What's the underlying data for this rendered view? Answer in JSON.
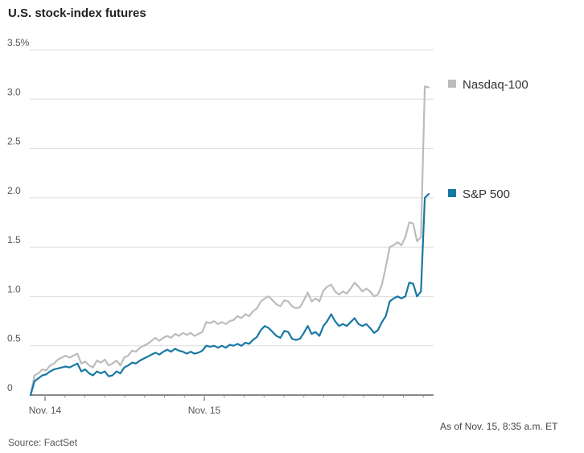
{
  "chart_data": {
    "type": "line",
    "title": "U.S. stock-index futures",
    "source": "Source: FactSet",
    "note": "As of Nov. 15, 8:35 a.m. ET",
    "y_ticks": [
      {
        "value": 0,
        "label": "0"
      },
      {
        "value": 0.5,
        "label": "0.5"
      },
      {
        "value": 1.0,
        "label": "1.0"
      },
      {
        "value": 1.5,
        "label": "1.5"
      },
      {
        "value": 2.0,
        "label": "2.0"
      },
      {
        "value": 2.5,
        "label": "2.5"
      },
      {
        "value": 3.0,
        "label": "3.0"
      },
      {
        "value": 3.5,
        "label": "3.5%"
      }
    ],
    "ylim": [
      0,
      3.5
    ],
    "xlim": [
      0,
      100
    ],
    "x_ticks": [
      {
        "value": 4,
        "label": "Nov. 14"
      },
      {
        "value": 44,
        "label": "Nov. 15"
      }
    ],
    "grid": true,
    "legend_position": "right",
    "series": [
      {
        "name": "Nasdaq-100",
        "color": "#bcbcbc",
        "points": [
          [
            0,
            0
          ],
          [
            1,
            0.2
          ],
          [
            2,
            0.22
          ],
          [
            3,
            0.26
          ],
          [
            4,
            0.25
          ],
          [
            5,
            0.3
          ],
          [
            6,
            0.32
          ],
          [
            7,
            0.36
          ],
          [
            8,
            0.38
          ],
          [
            9,
            0.4
          ],
          [
            10,
            0.38
          ],
          [
            11,
            0.4
          ],
          [
            12,
            0.42
          ],
          [
            13,
            0.32
          ],
          [
            14,
            0.34
          ],
          [
            15,
            0.3
          ],
          [
            16,
            0.28
          ],
          [
            17,
            0.35
          ],
          [
            18,
            0.33
          ],
          [
            19,
            0.36
          ],
          [
            20,
            0.3
          ],
          [
            21,
            0.32
          ],
          [
            22,
            0.35
          ],
          [
            23,
            0.3
          ],
          [
            24,
            0.38
          ],
          [
            25,
            0.4
          ],
          [
            26,
            0.45
          ],
          [
            27,
            0.44
          ],
          [
            28,
            0.48
          ],
          [
            29,
            0.5
          ],
          [
            30,
            0.52
          ],
          [
            31,
            0.55
          ],
          [
            32,
            0.58
          ],
          [
            33,
            0.55
          ],
          [
            34,
            0.58
          ],
          [
            35,
            0.6
          ],
          [
            36,
            0.58
          ],
          [
            37,
            0.62
          ],
          [
            38,
            0.6
          ],
          [
            39,
            0.63
          ],
          [
            40,
            0.61
          ],
          [
            41,
            0.63
          ],
          [
            42,
            0.6
          ],
          [
            43,
            0.62
          ],
          [
            44,
            0.64
          ],
          [
            45,
            0.74
          ],
          [
            46,
            0.73
          ],
          [
            47,
            0.75
          ],
          [
            48,
            0.72
          ],
          [
            49,
            0.74
          ],
          [
            50,
            0.72
          ],
          [
            51,
            0.75
          ],
          [
            52,
            0.76
          ],
          [
            53,
            0.8
          ],
          [
            54,
            0.78
          ],
          [
            55,
            0.82
          ],
          [
            56,
            0.8
          ],
          [
            57,
            0.85
          ],
          [
            58,
            0.88
          ],
          [
            59,
            0.95
          ],
          [
            60,
            0.98
          ],
          [
            61,
            1.0
          ],
          [
            62,
            0.96
          ],
          [
            63,
            0.92
          ],
          [
            64,
            0.9
          ],
          [
            65,
            0.96
          ],
          [
            66,
            0.95
          ],
          [
            67,
            0.9
          ],
          [
            68,
            0.88
          ],
          [
            69,
            0.89
          ],
          [
            70,
            0.96
          ],
          [
            71,
            1.04
          ],
          [
            72,
            0.95
          ],
          [
            73,
            0.98
          ],
          [
            74,
            0.95
          ],
          [
            75,
            1.06
          ],
          [
            76,
            1.1
          ],
          [
            77,
            1.12
          ],
          [
            78,
            1.05
          ],
          [
            79,
            1.02
          ],
          [
            80,
            1.05
          ],
          [
            81,
            1.03
          ],
          [
            82,
            1.08
          ],
          [
            83,
            1.14
          ],
          [
            84,
            1.1
          ],
          [
            85,
            1.05
          ],
          [
            86,
            1.08
          ],
          [
            87,
            1.05
          ],
          [
            88,
            1.0
          ],
          [
            89,
            1.02
          ],
          [
            90,
            1.12
          ],
          [
            91,
            1.3
          ],
          [
            92,
            1.5
          ],
          [
            93,
            1.52
          ],
          [
            94,
            1.55
          ],
          [
            95,
            1.52
          ],
          [
            96,
            1.6
          ],
          [
            97,
            1.75
          ],
          [
            98,
            1.74
          ],
          [
            99,
            1.56
          ],
          [
            100,
            1.6
          ],
          [
            101,
            3.13
          ],
          [
            102,
            3.12
          ]
        ]
      },
      {
        "name": "S&P 500",
        "color": "#1779a3",
        "points": [
          [
            0,
            0
          ],
          [
            1,
            0.14
          ],
          [
            2,
            0.17
          ],
          [
            3,
            0.2
          ],
          [
            4,
            0.21
          ],
          [
            5,
            0.24
          ],
          [
            6,
            0.26
          ],
          [
            7,
            0.27
          ],
          [
            8,
            0.28
          ],
          [
            9,
            0.29
          ],
          [
            10,
            0.28
          ],
          [
            11,
            0.3
          ],
          [
            12,
            0.32
          ],
          [
            13,
            0.24
          ],
          [
            14,
            0.26
          ],
          [
            15,
            0.22
          ],
          [
            16,
            0.2
          ],
          [
            17,
            0.24
          ],
          [
            18,
            0.22
          ],
          [
            19,
            0.24
          ],
          [
            20,
            0.19
          ],
          [
            21,
            0.2
          ],
          [
            22,
            0.24
          ],
          [
            23,
            0.22
          ],
          [
            24,
            0.28
          ],
          [
            25,
            0.3
          ],
          [
            26,
            0.33
          ],
          [
            27,
            0.32
          ],
          [
            28,
            0.35
          ],
          [
            29,
            0.37
          ],
          [
            30,
            0.39
          ],
          [
            31,
            0.41
          ],
          [
            32,
            0.43
          ],
          [
            33,
            0.41
          ],
          [
            34,
            0.44
          ],
          [
            35,
            0.46
          ],
          [
            36,
            0.44
          ],
          [
            37,
            0.47
          ],
          [
            38,
            0.45
          ],
          [
            39,
            0.44
          ],
          [
            40,
            0.42
          ],
          [
            41,
            0.44
          ],
          [
            42,
            0.42
          ],
          [
            43,
            0.43
          ],
          [
            44,
            0.45
          ],
          [
            45,
            0.5
          ],
          [
            46,
            0.49
          ],
          [
            47,
            0.5
          ],
          [
            48,
            0.48
          ],
          [
            49,
            0.5
          ],
          [
            50,
            0.48
          ],
          [
            51,
            0.51
          ],
          [
            52,
            0.5
          ],
          [
            53,
            0.52
          ],
          [
            54,
            0.5
          ],
          [
            55,
            0.53
          ],
          [
            56,
            0.52
          ],
          [
            57,
            0.56
          ],
          [
            58,
            0.59
          ],
          [
            59,
            0.66
          ],
          [
            60,
            0.7
          ],
          [
            61,
            0.68
          ],
          [
            62,
            0.64
          ],
          [
            63,
            0.6
          ],
          [
            64,
            0.58
          ],
          [
            65,
            0.65
          ],
          [
            66,
            0.64
          ],
          [
            67,
            0.57
          ],
          [
            68,
            0.56
          ],
          [
            69,
            0.57
          ],
          [
            70,
            0.63
          ],
          [
            71,
            0.7
          ],
          [
            72,
            0.62
          ],
          [
            73,
            0.64
          ],
          [
            74,
            0.6
          ],
          [
            75,
            0.7
          ],
          [
            76,
            0.75
          ],
          [
            77,
            0.82
          ],
          [
            78,
            0.75
          ],
          [
            79,
            0.7
          ],
          [
            80,
            0.72
          ],
          [
            81,
            0.7
          ],
          [
            82,
            0.74
          ],
          [
            83,
            0.78
          ],
          [
            84,
            0.72
          ],
          [
            85,
            0.7
          ],
          [
            86,
            0.72
          ],
          [
            87,
            0.68
          ],
          [
            88,
            0.63
          ],
          [
            89,
            0.66
          ],
          [
            90,
            0.74
          ],
          [
            91,
            0.8
          ],
          [
            92,
            0.95
          ],
          [
            93,
            0.98
          ],
          [
            94,
            1.0
          ],
          [
            95,
            0.98
          ],
          [
            96,
            1.0
          ],
          [
            97,
            1.14
          ],
          [
            98,
            1.13
          ],
          [
            99,
            1.0
          ],
          [
            100,
            1.05
          ],
          [
            101,
            2.0
          ],
          [
            102,
            2.04
          ]
        ]
      }
    ]
  }
}
